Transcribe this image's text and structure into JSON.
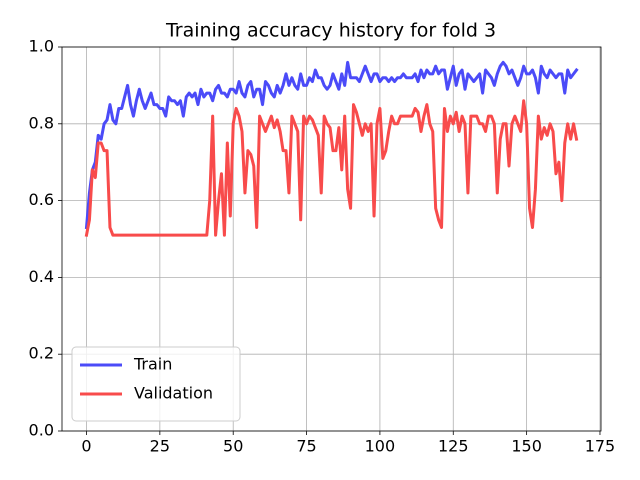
{
  "chart_data": {
    "type": "line",
    "title": "Training accuracy history for fold 3",
    "x": [
      0,
      1,
      2,
      3,
      4,
      5,
      6,
      7,
      8,
      9,
      10,
      11,
      12,
      13,
      14,
      15,
      16,
      17,
      18,
      19,
      20,
      21,
      22,
      23,
      24,
      25,
      26,
      27,
      28,
      29,
      30,
      31,
      32,
      33,
      34,
      35,
      36,
      37,
      38,
      39,
      40,
      41,
      42,
      43,
      44,
      45,
      46,
      47,
      48,
      49,
      50,
      51,
      52,
      53,
      54,
      55,
      56,
      57,
      58,
      59,
      60,
      61,
      62,
      63,
      64,
      65,
      66,
      67,
      68,
      69,
      70,
      71,
      72,
      73,
      74,
      75,
      76,
      77,
      78,
      79,
      80,
      81,
      82,
      83,
      84,
      85,
      86,
      87,
      88,
      89,
      90,
      91,
      92,
      93,
      94,
      95,
      96,
      97,
      98,
      99,
      100,
      101,
      102,
      103,
      104,
      105,
      106,
      107,
      108,
      109,
      110,
      111,
      112,
      113,
      114,
      115,
      116,
      117,
      118,
      119,
      120,
      121,
      122,
      123,
      124,
      125,
      126,
      127,
      128,
      129,
      130,
      131,
      132,
      133,
      134,
      135,
      136,
      137,
      138,
      139,
      140,
      141,
      142,
      143,
      144,
      145,
      146,
      147,
      148,
      149,
      150,
      151,
      152,
      153,
      154,
      155,
      156,
      157,
      158,
      159,
      160,
      161,
      162,
      163,
      164,
      165,
      166,
      167
    ],
    "series": [
      {
        "name": "Train",
        "color": "#4b4bf8",
        "values": [
          0.53,
          0.62,
          0.68,
          0.7,
          0.77,
          0.76,
          0.8,
          0.81,
          0.85,
          0.81,
          0.8,
          0.84,
          0.84,
          0.87,
          0.9,
          0.85,
          0.82,
          0.86,
          0.89,
          0.86,
          0.84,
          0.86,
          0.88,
          0.85,
          0.85,
          0.84,
          0.84,
          0.82,
          0.87,
          0.86,
          0.86,
          0.85,
          0.86,
          0.82,
          0.87,
          0.88,
          0.87,
          0.88,
          0.85,
          0.89,
          0.87,
          0.88,
          0.88,
          0.86,
          0.89,
          0.9,
          0.88,
          0.88,
          0.87,
          0.89,
          0.89,
          0.88,
          0.91,
          0.88,
          0.87,
          0.9,
          0.91,
          0.87,
          0.89,
          0.89,
          0.85,
          0.91,
          0.9,
          0.88,
          0.87,
          0.9,
          0.88,
          0.9,
          0.93,
          0.9,
          0.92,
          0.9,
          0.89,
          0.93,
          0.9,
          0.9,
          0.92,
          0.91,
          0.94,
          0.92,
          0.92,
          0.9,
          0.89,
          0.9,
          0.93,
          0.91,
          0.89,
          0.93,
          0.9,
          0.96,
          0.92,
          0.92,
          0.92,
          0.91,
          0.93,
          0.95,
          0.93,
          0.91,
          0.93,
          0.93,
          0.91,
          0.92,
          0.92,
          0.91,
          0.92,
          0.91,
          0.92,
          0.92,
          0.93,
          0.92,
          0.92,
          0.92,
          0.93,
          0.91,
          0.94,
          0.92,
          0.94,
          0.93,
          0.93,
          0.95,
          0.93,
          0.94,
          0.94,
          0.89,
          0.92,
          0.95,
          0.9,
          0.93,
          0.94,
          0.89,
          0.93,
          0.92,
          0.91,
          0.92,
          0.93,
          0.88,
          0.94,
          0.93,
          0.92,
          0.9,
          0.93,
          0.95,
          0.96,
          0.95,
          0.93,
          0.94,
          0.92,
          0.9,
          0.92,
          0.95,
          0.93,
          0.93,
          0.94,
          0.92,
          0.88,
          0.95,
          0.93,
          0.92,
          0.94,
          0.93,
          0.92,
          0.93,
          0.93,
          0.88,
          0.94,
          0.92,
          0.93,
          0.94
        ]
      },
      {
        "name": "Validation",
        "color": "#f84b4b",
        "values": [
          0.51,
          0.55,
          0.68,
          0.66,
          0.75,
          0.75,
          0.73,
          0.73,
          0.53,
          0.51,
          0.51,
          0.51,
          0.51,
          0.51,
          0.51,
          0.51,
          0.51,
          0.51,
          0.51,
          0.51,
          0.51,
          0.51,
          0.51,
          0.51,
          0.51,
          0.51,
          0.51,
          0.51,
          0.51,
          0.51,
          0.51,
          0.51,
          0.51,
          0.51,
          0.51,
          0.51,
          0.51,
          0.51,
          0.51,
          0.51,
          0.51,
          0.51,
          0.6,
          0.82,
          0.51,
          0.6,
          0.67,
          0.51,
          0.75,
          0.56,
          0.8,
          0.84,
          0.82,
          0.78,
          0.62,
          0.73,
          0.72,
          0.69,
          0.53,
          0.82,
          0.8,
          0.78,
          0.8,
          0.82,
          0.79,
          0.81,
          0.78,
          0.73,
          0.73,
          0.62,
          0.82,
          0.8,
          0.78,
          0.55,
          0.82,
          0.8,
          0.82,
          0.81,
          0.79,
          0.77,
          0.62,
          0.82,
          0.8,
          0.79,
          0.73,
          0.73,
          0.79,
          0.68,
          0.82,
          0.63,
          0.58,
          0.85,
          0.83,
          0.8,
          0.77,
          0.8,
          0.78,
          0.8,
          0.56,
          0.8,
          0.84,
          0.71,
          0.73,
          0.78,
          0.82,
          0.8,
          0.8,
          0.82,
          0.82,
          0.82,
          0.82,
          0.82,
          0.84,
          0.83,
          0.78,
          0.82,
          0.85,
          0.8,
          0.78,
          0.58,
          0.55,
          0.53,
          0.84,
          0.78,
          0.82,
          0.8,
          0.83,
          0.78,
          0.82,
          0.8,
          0.62,
          0.82,
          0.82,
          0.82,
          0.8,
          0.8,
          0.78,
          0.82,
          0.82,
          0.8,
          0.62,
          0.76,
          0.8,
          0.8,
          0.69,
          0.8,
          0.82,
          0.8,
          0.78,
          0.86,
          0.8,
          0.58,
          0.53,
          0.63,
          0.82,
          0.76,
          0.79,
          0.77,
          0.8,
          0.78,
          0.67,
          0.7,
          0.6,
          0.75,
          0.8,
          0.76,
          0.8,
          0.76
        ]
      }
    ],
    "xlim": [
      -8.35,
      175.35
    ],
    "xticks": [
      0,
      25,
      50,
      75,
      100,
      125,
      150,
      175
    ],
    "ylim": [
      0,
      1
    ],
    "yticks": [
      {
        "value": 0,
        "label": "0.0"
      },
      0.2,
      0.4,
      0.6,
      0.8,
      {
        "value": 1,
        "label": "1.0"
      }
    ],
    "grid": true,
    "legend": "lower left"
  }
}
